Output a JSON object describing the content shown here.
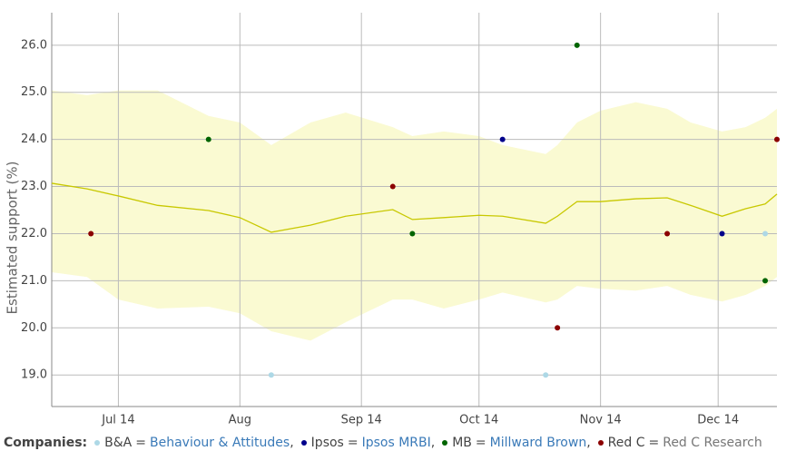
{
  "chart_data": {
    "type": "scatter",
    "y_label": "Estimated support (%)",
    "ylim": [
      18.33,
      26.69
    ],
    "yticks": [
      {
        "value": 19,
        "label": "19.0"
      },
      {
        "value": 20,
        "label": "20.0"
      },
      {
        "value": 21,
        "label": "21.0"
      },
      {
        "value": 22,
        "label": "22.0"
      },
      {
        "value": 23,
        "label": "23.0"
      },
      {
        "value": 24,
        "label": "24.0"
      },
      {
        "value": 25,
        "label": "25.0"
      },
      {
        "value": 26,
        "label": "26.0"
      }
    ],
    "xlim": [
      "2014-06-14",
      "2014-12-16"
    ],
    "xticks": [
      {
        "value": "2014-07-01",
        "label": "Jul 14"
      },
      {
        "value": "2014-08-01",
        "label": "Aug"
      },
      {
        "value": "2014-09-01",
        "label": "Sep 14"
      },
      {
        "value": "2014-10-01",
        "label": "Oct 14"
      },
      {
        "value": "2014-11-01",
        "label": "Nov 14"
      },
      {
        "value": "2014-12-01",
        "label": "Dec 14"
      }
    ],
    "grid": true,
    "trend": {
      "color": "#c8c800",
      "band_color": "#fafad2",
      "x": [
        "2014-06-14",
        "2014-06-23",
        "2014-07-01",
        "2014-07-11",
        "2014-07-24",
        "2014-08-01",
        "2014-08-09",
        "2014-08-19",
        "2014-08-28",
        "2014-09-09",
        "2014-09-14",
        "2014-09-22",
        "2014-10-01",
        "2014-10-07",
        "2014-10-18",
        "2014-10-21",
        "2014-10-26",
        "2014-11-01",
        "2014-11-10",
        "2014-11-18",
        "2014-11-24",
        "2014-12-02",
        "2014-12-08",
        "2014-12-13",
        "2014-12-16"
      ],
      "values": [
        23.07,
        22.95,
        22.8,
        22.6,
        22.49,
        22.34,
        22.03,
        22.18,
        22.37,
        22.51,
        22.3,
        22.34,
        22.39,
        22.37,
        22.22,
        22.37,
        22.68,
        22.68,
        22.74,
        22.76,
        22.6,
        22.37,
        22.53,
        22.63,
        22.84
      ],
      "upper": [
        25.04,
        24.94,
        25.04,
        25.04,
        24.5,
        24.36,
        23.88,
        24.36,
        24.57,
        24.26,
        24.07,
        24.17,
        24.07,
        23.88,
        23.69,
        23.88,
        24.36,
        24.61,
        24.79,
        24.65,
        24.36,
        24.17,
        24.26,
        24.46,
        24.65
      ],
      "lower": [
        21.18,
        21.08,
        20.6,
        20.41,
        20.45,
        20.31,
        19.93,
        19.73,
        20.12,
        20.6,
        20.6,
        20.41,
        20.6,
        20.75,
        20.54,
        20.6,
        20.89,
        20.83,
        20.79,
        20.89,
        20.7,
        20.56,
        20.7,
        20.89,
        21.08
      ]
    },
    "legend": {
      "title": "Companies:",
      "separator": "=",
      "delimiter": ","
    },
    "series": [
      {
        "name": "B&A",
        "full_name": "Behaviour & Attitudes",
        "color": "#add8e6",
        "link_color": "#3a7ab8",
        "x": [
          "2014-08-09",
          "2014-10-18",
          "2014-12-13"
        ],
        "values": [
          19,
          19,
          22
        ]
      },
      {
        "name": "Ipsos",
        "full_name": "Ipsos MRBI",
        "color": "#00008b",
        "link_color": "#3a7ab8",
        "x": [
          "2014-10-07",
          "2014-12-02"
        ],
        "values": [
          24,
          22
        ]
      },
      {
        "name": "MB",
        "full_name": "Millward Brown",
        "color": "#006400",
        "link_color": "#3a7ab8",
        "x": [
          "2014-07-24",
          "2014-09-14",
          "2014-10-26",
          "2014-12-13"
        ],
        "values": [
          24,
          22,
          26,
          21
        ]
      },
      {
        "name": "Red C",
        "full_name": "Red C Research",
        "color": "#8b0000",
        "link_color": "#777777",
        "x": [
          "2014-06-24",
          "2014-09-09",
          "2014-10-21",
          "2014-11-18",
          "2014-12-16"
        ],
        "values": [
          22,
          23,
          20,
          22,
          24
        ]
      }
    ]
  }
}
